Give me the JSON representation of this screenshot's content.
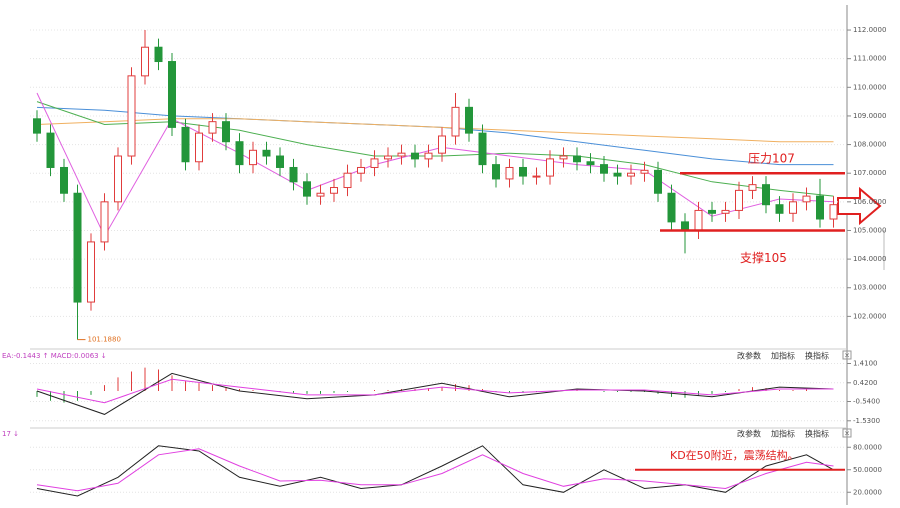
{
  "chart_data": [
    {
      "type": "candlestick",
      "up_color": "#e03c3c",
      "down_color": "#23963a",
      "open": [
        108.9,
        108.4,
        107.2,
        106.3,
        102.5,
        104.6,
        106.0,
        107.6,
        110.4,
        111.4,
        110.9,
        108.6,
        107.4,
        108.4,
        108.8,
        108.1,
        107.3,
        107.8,
        107.6,
        107.2,
        106.7,
        106.2,
        106.3,
        106.5,
        107.0,
        107.2,
        107.5,
        107.6,
        107.7,
        107.5,
        107.7,
        108.3,
        109.3,
        108.4,
        107.3,
        106.8,
        107.2,
        106.9,
        106.9,
        107.5,
        107.6,
        107.4,
        107.3,
        107.0,
        106.9,
        107.0,
        107.1,
        106.3,
        105.3,
        105.0,
        105.7,
        105.6,
        105.7,
        106.4,
        106.6,
        105.9,
        105.6,
        106.0,
        106.2,
        105.4
      ],
      "high": [
        109.2,
        108.7,
        107.5,
        106.6,
        104.9,
        106.3,
        107.9,
        110.7,
        112.0,
        111.7,
        111.2,
        108.9,
        108.7,
        109.1,
        109.1,
        108.4,
        108.1,
        108.1,
        107.9,
        107.5,
        107.0,
        106.6,
        106.8,
        107.3,
        107.5,
        107.8,
        107.9,
        108.0,
        108.0,
        108.0,
        108.6,
        109.8,
        109.6,
        108.7,
        107.6,
        107.5,
        107.5,
        107.2,
        107.8,
        107.9,
        107.9,
        107.7,
        107.6,
        107.3,
        107.3,
        107.4,
        107.4,
        106.6,
        105.6,
        106.0,
        106.0,
        106.0,
        106.7,
        106.9,
        106.9,
        106.2,
        106.3,
        106.5,
        106.8,
        106.2
      ],
      "low": [
        108.1,
        106.9,
        106.0,
        101.188,
        102.2,
        104.3,
        105.7,
        107.3,
        110.1,
        110.6,
        108.3,
        107.1,
        107.1,
        108.1,
        107.8,
        107.0,
        107.0,
        107.3,
        106.9,
        106.4,
        105.9,
        105.9,
        106.0,
        106.2,
        106.7,
        106.9,
        107.2,
        107.3,
        107.2,
        107.2,
        107.4,
        108.0,
        108.1,
        107.0,
        106.5,
        106.5,
        106.6,
        106.6,
        106.6,
        107.2,
        107.1,
        107.0,
        106.7,
        106.6,
        106.6,
        106.7,
        106.0,
        105.0,
        104.2,
        104.7,
        105.3,
        105.3,
        105.4,
        106.1,
        105.6,
        105.3,
        105.3,
        105.7,
        105.1,
        105.1
      ],
      "close": [
        108.4,
        107.2,
        106.3,
        102.5,
        104.6,
        106.0,
        107.6,
        110.4,
        111.4,
        110.9,
        108.6,
        107.4,
        108.4,
        108.8,
        108.1,
        107.3,
        107.8,
        107.6,
        107.2,
        106.7,
        106.2,
        106.3,
        106.5,
        107.0,
        107.2,
        107.5,
        107.6,
        107.7,
        107.5,
        107.7,
        108.3,
        109.3,
        108.4,
        107.3,
        106.8,
        107.2,
        106.9,
        106.9,
        107.5,
        107.6,
        107.4,
        107.3,
        107.0,
        106.9,
        107.0,
        107.1,
        106.3,
        105.3,
        105.0,
        105.7,
        105.6,
        105.7,
        106.4,
        106.6,
        105.9,
        105.6,
        106.0,
        106.2,
        105.4,
        105.9
      ],
      "lines": [
        {
          "color": "#4a8fd8",
          "x": [
            0,
            5,
            10,
            15,
            20,
            25,
            30,
            35,
            40,
            45,
            50,
            55,
            59
          ],
          "values": [
            109.3,
            109.2,
            109.0,
            108.9,
            108.8,
            108.7,
            108.6,
            108.4,
            108.1,
            107.8,
            107.5,
            107.3,
            107.3
          ]
        },
        {
          "color": "#f0b060",
          "x": [
            0,
            5,
            10,
            15,
            20,
            25,
            30,
            35,
            40,
            45,
            50,
            55,
            59
          ],
          "values": [
            108.7,
            108.8,
            108.9,
            108.9,
            108.8,
            108.7,
            108.6,
            108.5,
            108.4,
            108.3,
            108.2,
            108.1,
            108.1
          ]
        },
        {
          "color": "#4caf50",
          "x": [
            0,
            5,
            10,
            15,
            20,
            25,
            30,
            35,
            40,
            45,
            50,
            55,
            59
          ],
          "values": [
            109.5,
            108.7,
            108.8,
            108.5,
            108.0,
            107.6,
            107.6,
            107.7,
            107.6,
            107.3,
            106.7,
            106.4,
            106.2
          ]
        },
        {
          "color": "#e060e0",
          "x": [
            0,
            5,
            10,
            15,
            20,
            25,
            30,
            35,
            40,
            45,
            50,
            55,
            59
          ],
          "values": [
            109.8,
            104.8,
            108.9,
            107.7,
            106.4,
            107.3,
            107.9,
            107.6,
            107.3,
            107.1,
            105.5,
            106.1,
            106.0
          ]
        }
      ],
      "ylim": [
        101.0,
        112.7
      ],
      "yticks": [
        {
          "value": 102,
          "label": "102.0000"
        },
        {
          "value": 103,
          "label": "103.0000"
        },
        {
          "value": 104,
          "label": "104.0000"
        },
        {
          "value": 105,
          "label": "105.0000"
        },
        {
          "value": 106,
          "label": "106.0000"
        },
        {
          "value": 107,
          "label": "107.0000"
        },
        {
          "value": 108,
          "label": "108.0000"
        },
        {
          "value": 109,
          "label": "109.0000"
        },
        {
          "value": 110,
          "label": "110.0000"
        },
        {
          "value": 111,
          "label": "111.0000"
        },
        {
          "value": 112,
          "label": "112.0000"
        }
      ],
      "grid": true,
      "low_label": "101.1880",
      "annotations": [
        {
          "text": "压力107",
          "value": 107,
          "color": "#e02020"
        },
        {
          "text": "支撑105",
          "value": 105,
          "color": "#e02020"
        }
      ]
    },
    {
      "type": "macd",
      "header": "EA:-0.1443 ↑ MACD:0.0063 ↓",
      "buttons": [
        "改参数",
        "加指标",
        "换指标"
      ],
      "bars": [
        -0.3,
        -0.5,
        -0.6,
        -0.5,
        -0.2,
        0.3,
        0.7,
        1.0,
        1.2,
        1.1,
        0.8,
        0.5,
        0.4,
        0.3,
        0.2,
        0.1,
        0.05,
        0,
        -0.05,
        -0.1,
        -0.15,
        -0.15,
        -0.1,
        -0.05,
        0,
        0.05,
        0.05,
        0.1,
        0.1,
        0.15,
        0.2,
        0.35,
        0.3,
        0.1,
        -0.05,
        -0.1,
        -0.1,
        -0.05,
        0,
        0.05,
        0.05,
        0,
        -0.05,
        -0.05,
        -0.05,
        -0.05,
        -0.15,
        -0.3,
        -0.35,
        -0.25,
        -0.15,
        -0.05,
        0.1,
        0.2,
        0.15,
        0.05,
        0.05,
        0.1,
        0.0,
        0.0
      ],
      "up_color": "#e03c3c",
      "down_color": "#23963a",
      "series": [
        {
          "color": "#222222",
          "x": [
            0,
            5,
            10,
            15,
            20,
            25,
            30,
            35,
            40,
            45,
            50,
            55,
            59
          ],
          "values": [
            0.0,
            -1.2,
            0.9,
            0.0,
            -0.4,
            -0.2,
            0.4,
            -0.3,
            0.1,
            0.0,
            -0.3,
            0.2,
            0.1
          ]
        },
        {
          "color": "#e040e0",
          "x": [
            0,
            5,
            10,
            15,
            20,
            25,
            30,
            35,
            40,
            45,
            50,
            55,
            59
          ],
          "values": [
            0.1,
            -0.6,
            0.6,
            0.2,
            -0.2,
            -0.2,
            0.2,
            -0.1,
            0.05,
            0.05,
            -0.2,
            0.1,
            0.1
          ]
        }
      ],
      "ylim": [
        -1.9,
        2.0
      ],
      "yticks": [
        {
          "value": 1.41,
          "label": "1.4100"
        },
        {
          "value": 0.42,
          "label": "0.4200"
        },
        {
          "value": -0.54,
          "label": "-0.5400"
        },
        {
          "value": -1.53,
          "label": "-1.5300"
        }
      ],
      "grid": true
    },
    {
      "type": "line",
      "header": "17 ↓",
      "buttons": [
        "改参数",
        "加指标",
        "换指标"
      ],
      "series": [
        {
          "color": "#222222",
          "x": [
            0,
            3,
            6,
            9,
            12,
            15,
            18,
            21,
            24,
            27,
            30,
            33,
            36,
            39,
            42,
            45,
            48,
            51,
            54,
            57,
            59
          ],
          "values": [
            25,
            15,
            40,
            82,
            75,
            40,
            28,
            40,
            25,
            30,
            55,
            82,
            30,
            20,
            50,
            25,
            30,
            20,
            55,
            70,
            50
          ]
        },
        {
          "color": "#e040e0",
          "x": [
            0,
            3,
            6,
            9,
            12,
            15,
            18,
            21,
            24,
            27,
            30,
            33,
            36,
            39,
            42,
            45,
            48,
            51,
            54,
            57,
            59
          ],
          "values": [
            30,
            22,
            32,
            70,
            78,
            55,
            35,
            36,
            30,
            30,
            45,
            70,
            45,
            28,
            38,
            35,
            30,
            25,
            45,
            60,
            55
          ]
        }
      ],
      "ylim": [
        3,
        103
      ],
      "yticks": [
        {
          "value": 80,
          "label": "80.0000"
        },
        {
          "value": 50,
          "label": "50.0000"
        },
        {
          "value": 20,
          "label": "20.0000"
        }
      ],
      "grid": true,
      "annotations": [
        {
          "text": "KD在50附近，震荡结构。",
          "value": 50,
          "color": "#e02020"
        }
      ]
    }
  ]
}
